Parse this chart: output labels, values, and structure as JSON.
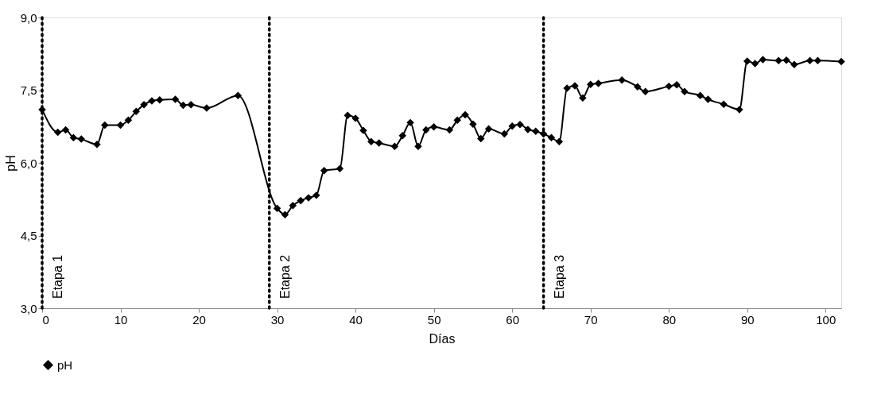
{
  "chart_data": {
    "type": "line",
    "xlabel": "Días",
    "ylabel": "pH",
    "x": [
      0,
      2,
      3,
      4,
      5,
      7,
      8,
      10,
      11,
      12,
      13,
      14,
      15,
      17,
      18,
      19,
      21,
      25,
      30,
      31,
      32,
      33,
      34,
      35,
      36,
      38,
      39,
      40,
      41,
      42,
      43,
      45,
      46,
      47,
      48,
      49,
      50,
      52,
      53,
      54,
      55,
      56,
      57,
      59,
      60,
      61,
      62,
      63,
      64,
      65,
      66,
      67,
      68,
      69,
      70,
      71,
      74,
      76,
      77,
      80,
      81,
      82,
      84,
      85,
      87,
      89,
      90,
      91,
      92,
      94,
      95,
      96,
      98,
      99,
      102
    ],
    "series": [
      {
        "name": "pH",
        "color": "#000000",
        "values": [
          7.1,
          6.63,
          6.68,
          6.52,
          6.49,
          6.38,
          6.78,
          6.78,
          6.88,
          7.06,
          7.2,
          7.28,
          7.3,
          7.31,
          7.19,
          7.2,
          7.13,
          7.39,
          5.06,
          4.93,
          5.12,
          5.22,
          5.28,
          5.33,
          5.84,
          5.88,
          6.98,
          6.92,
          6.67,
          6.44,
          6.41,
          6.34,
          6.56,
          6.83,
          6.34,
          6.68,
          6.74,
          6.68,
          6.88,
          6.99,
          6.8,
          6.5,
          6.7,
          6.6,
          6.76,
          6.79,
          6.69,
          6.65,
          6.6,
          6.52,
          6.44,
          7.54,
          7.59,
          7.34,
          7.62,
          7.64,
          7.71,
          7.57,
          7.47,
          7.58,
          7.61,
          7.47,
          7.39,
          7.31,
          7.21,
          7.1,
          8.1,
          8.05,
          8.13,
          8.11,
          8.12,
          8.03,
          8.11,
          8.11,
          8.09
        ]
      }
    ],
    "xlim": [
      0,
      102
    ],
    "xticks": [
      0,
      10,
      20,
      30,
      40,
      50,
      60,
      70,
      80,
      90,
      100
    ],
    "ylim": [
      3,
      9
    ],
    "yticks": [
      {
        "value": 3,
        "label": "3,0"
      },
      {
        "value": 4.5,
        "label": "4,5"
      },
      {
        "value": 6,
        "label": "6,0"
      },
      {
        "value": 7.5,
        "label": "7,5"
      },
      {
        "value": 9,
        "label": "9,0"
      }
    ],
    "ref_lines": [
      {
        "axis": "x",
        "value": 0,
        "label": "Etapa 1",
        "color": "#000000",
        "line_style": "dotted"
      },
      {
        "axis": "x",
        "value": 29,
        "label": "Etapa 2",
        "color": "#000000",
        "line_style": "dotted"
      },
      {
        "axis": "x",
        "value": 64,
        "label": "Etapa 3",
        "color": "#000000",
        "line_style": "dotted"
      }
    ],
    "marker": "diamond",
    "line_style": "solid",
    "grid": false,
    "legend": "bottom"
  }
}
